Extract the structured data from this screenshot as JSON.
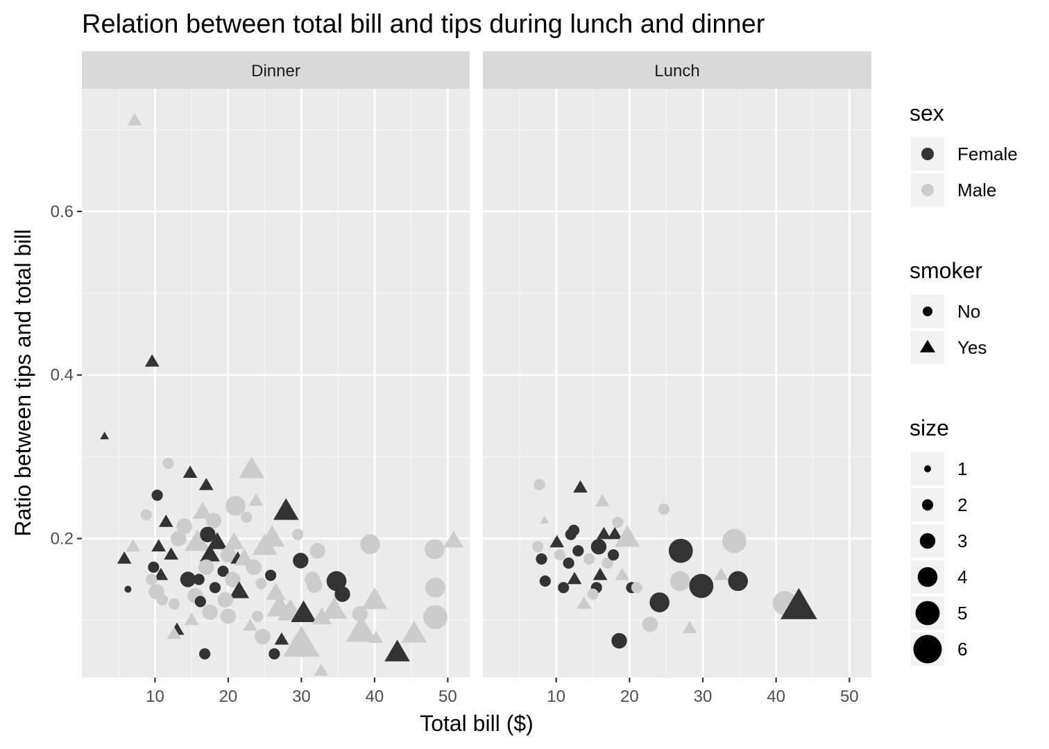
{
  "chart_data": {
    "type": "scatter",
    "title": "Relation between total bill and tips during lunch and dinner",
    "xlabel": "Total bill ($)",
    "ylabel": "Ratio between tips and total bill",
    "xlim": [
      0,
      53
    ],
    "ylim": [
      0.03,
      0.75
    ],
    "x_ticks": [
      10,
      20,
      30,
      40,
      50
    ],
    "y_ticks": [
      0.2,
      0.4,
      0.6
    ],
    "x_tick_labels": [
      "10",
      "20",
      "30",
      "40",
      "50"
    ],
    "y_tick_labels": [
      "0.2",
      "0.4",
      "0.6"
    ],
    "grid": true,
    "facets": [
      "Dinner",
      "Lunch"
    ],
    "colors": {
      "Female": "#333333",
      "Male": "#cccccc"
    },
    "legend": {
      "placement": "right",
      "sex": {
        "title": "sex",
        "entries": [
          "Female",
          "Male"
        ]
      },
      "smoker": {
        "title": "smoker",
        "entries": [
          "No",
          "Yes"
        ]
      },
      "size": {
        "title": "size",
        "entries": [
          1,
          2,
          3,
          4,
          5,
          6
        ]
      }
    },
    "points": {
      "Dinner": [
        {
          "x": 7.2,
          "y": 0.711,
          "sex": "Male",
          "smoker": "Yes",
          "size": 2
        },
        {
          "x": 9.6,
          "y": 0.416,
          "sex": "Female",
          "smoker": "Yes",
          "size": 2
        },
        {
          "x": 3.1,
          "y": 0.325,
          "sex": "Female",
          "smoker": "Yes",
          "size": 1
        },
        {
          "x": 14.8,
          "y": 0.28,
          "sex": "Female",
          "smoker": "Yes",
          "size": 2
        },
        {
          "x": 17.0,
          "y": 0.265,
          "sex": "Female",
          "smoker": "Yes",
          "size": 2
        },
        {
          "x": 23.2,
          "y": 0.284,
          "sex": "Male",
          "smoker": "Yes",
          "size": 4
        },
        {
          "x": 11.8,
          "y": 0.292,
          "sex": "Male",
          "smoker": "No",
          "size": 2
        },
        {
          "x": 10.3,
          "y": 0.253,
          "sex": "Female",
          "smoker": "No",
          "size": 2
        },
        {
          "x": 8.8,
          "y": 0.229,
          "sex": "Male",
          "smoker": "No",
          "size": 2
        },
        {
          "x": 11.5,
          "y": 0.22,
          "sex": "Female",
          "smoker": "Yes",
          "size": 2
        },
        {
          "x": 22.5,
          "y": 0.226,
          "sex": "Male",
          "smoker": "No",
          "size": 2
        },
        {
          "x": 23.8,
          "y": 0.246,
          "sex": "Male",
          "smoker": "Yes",
          "size": 2
        },
        {
          "x": 21.0,
          "y": 0.24,
          "sex": "Male",
          "smoker": "No",
          "size": 4
        },
        {
          "x": 27.9,
          "y": 0.233,
          "sex": "Female",
          "smoker": "Yes",
          "size": 4
        },
        {
          "x": 16.5,
          "y": 0.232,
          "sex": "Male",
          "smoker": "Yes",
          "size": 3
        },
        {
          "x": 18.0,
          "y": 0.222,
          "sex": "Male",
          "smoker": "No",
          "size": 3
        },
        {
          "x": 14.0,
          "y": 0.215,
          "sex": "Male",
          "smoker": "No",
          "size": 3
        },
        {
          "x": 13.2,
          "y": 0.2,
          "sex": "Male",
          "smoker": "No",
          "size": 3
        },
        {
          "x": 7.0,
          "y": 0.19,
          "sex": "Male",
          "smoker": "Yes",
          "size": 2
        },
        {
          "x": 5.8,
          "y": 0.175,
          "sex": "Female",
          "smoker": "Yes",
          "size": 2
        },
        {
          "x": 10.5,
          "y": 0.19,
          "sex": "Female",
          "smoker": "Yes",
          "size": 2
        },
        {
          "x": 12.2,
          "y": 0.18,
          "sex": "Female",
          "smoker": "Yes",
          "size": 2
        },
        {
          "x": 10.8,
          "y": 0.155,
          "sex": "Female",
          "smoker": "Yes",
          "size": 2
        },
        {
          "x": 9.8,
          "y": 0.165,
          "sex": "Female",
          "smoker": "No",
          "size": 2
        },
        {
          "x": 9.5,
          "y": 0.15,
          "sex": "Male",
          "smoker": "No",
          "size": 2
        },
        {
          "x": 6.3,
          "y": 0.138,
          "sex": "Female",
          "smoker": "No",
          "size": 1
        },
        {
          "x": 10.2,
          "y": 0.135,
          "sex": "Male",
          "smoker": "No",
          "size": 3
        },
        {
          "x": 11.0,
          "y": 0.125,
          "sex": "Male",
          "smoker": "No",
          "size": 2
        },
        {
          "x": 12.6,
          "y": 0.12,
          "sex": "Male",
          "smoker": "No",
          "size": 2
        },
        {
          "x": 13.0,
          "y": 0.088,
          "sex": "Female",
          "smoker": "Yes",
          "size": 2
        },
        {
          "x": 12.6,
          "y": 0.083,
          "sex": "Male",
          "smoker": "Yes",
          "size": 2
        },
        {
          "x": 15.0,
          "y": 0.1,
          "sex": "Male",
          "smoker": "Yes",
          "size": 2
        },
        {
          "x": 15.5,
          "y": 0.13,
          "sex": "Male",
          "smoker": "No",
          "size": 3
        },
        {
          "x": 14.5,
          "y": 0.15,
          "sex": "Female",
          "smoker": "No",
          "size": 3
        },
        {
          "x": 15.8,
          "y": 0.195,
          "sex": "Male",
          "smoker": "Yes",
          "size": 4
        },
        {
          "x": 17.2,
          "y": 0.205,
          "sex": "Female",
          "smoker": "No",
          "size": 3
        },
        {
          "x": 17.5,
          "y": 0.18,
          "sex": "Female",
          "smoker": "Yes",
          "size": 3
        },
        {
          "x": 18.5,
          "y": 0.195,
          "sex": "Female",
          "smoker": "Yes",
          "size": 3
        },
        {
          "x": 17.0,
          "y": 0.165,
          "sex": "Male",
          "smoker": "No",
          "size": 3
        },
        {
          "x": 16.0,
          "y": 0.15,
          "sex": "Female",
          "smoker": "No",
          "size": 2
        },
        {
          "x": 18.2,
          "y": 0.14,
          "sex": "Female",
          "smoker": "No",
          "size": 2
        },
        {
          "x": 19.3,
          "y": 0.16,
          "sex": "Female",
          "smoker": "No",
          "size": 2
        },
        {
          "x": 20.0,
          "y": 0.18,
          "sex": "Male",
          "smoker": "No",
          "size": 3
        },
        {
          "x": 20.8,
          "y": 0.195,
          "sex": "Male",
          "smoker": "Yes",
          "size": 3
        },
        {
          "x": 21.3,
          "y": 0.175,
          "sex": "Female",
          "smoker": "Yes",
          "size": 2
        },
        {
          "x": 20.6,
          "y": 0.15,
          "sex": "Male",
          "smoker": "No",
          "size": 3
        },
        {
          "x": 21.5,
          "y": 0.135,
          "sex": "Female",
          "smoker": "Yes",
          "size": 3
        },
        {
          "x": 19.6,
          "y": 0.125,
          "sex": "Male",
          "smoker": "No",
          "size": 3
        },
        {
          "x": 20.0,
          "y": 0.105,
          "sex": "Male",
          "smoker": "No",
          "size": 3
        },
        {
          "x": 16.2,
          "y": 0.123,
          "sex": "Female",
          "smoker": "No",
          "size": 2
        },
        {
          "x": 17.5,
          "y": 0.11,
          "sex": "Male",
          "smoker": "No",
          "size": 3
        },
        {
          "x": 16.8,
          "y": 0.059,
          "sex": "Female",
          "smoker": "No",
          "size": 2
        },
        {
          "x": 22.2,
          "y": 0.175,
          "sex": "Male",
          "smoker": "Yes",
          "size": 3
        },
        {
          "x": 23.5,
          "y": 0.165,
          "sex": "Male",
          "smoker": "No",
          "size": 3
        },
        {
          "x": 24.5,
          "y": 0.145,
          "sex": "Male",
          "smoker": "No",
          "size": 2
        },
        {
          "x": 25.0,
          "y": 0.19,
          "sex": "Male",
          "smoker": "Yes",
          "size": 4
        },
        {
          "x": 26.0,
          "y": 0.2,
          "sex": "Male",
          "smoker": "Yes",
          "size": 4
        },
        {
          "x": 25.8,
          "y": 0.155,
          "sex": "Female",
          "smoker": "No",
          "size": 2
        },
        {
          "x": 24.0,
          "y": 0.105,
          "sex": "Male",
          "smoker": "No",
          "size": 2
        },
        {
          "x": 23.0,
          "y": 0.093,
          "sex": "Male",
          "smoker": "Yes",
          "size": 2
        },
        {
          "x": 24.7,
          "y": 0.08,
          "sex": "Male",
          "smoker": "No",
          "size": 3
        },
        {
          "x": 26.3,
          "y": 0.059,
          "sex": "Female",
          "smoker": "No",
          "size": 2
        },
        {
          "x": 27.3,
          "y": 0.076,
          "sex": "Female",
          "smoker": "Yes",
          "size": 2
        },
        {
          "x": 27.0,
          "y": 0.115,
          "sex": "Male",
          "smoker": "Yes",
          "size": 4
        },
        {
          "x": 26.5,
          "y": 0.133,
          "sex": "Male",
          "smoker": "Yes",
          "size": 3
        },
        {
          "x": 28.5,
          "y": 0.11,
          "sex": "Male",
          "smoker": "Yes",
          "size": 4
        },
        {
          "x": 29.5,
          "y": 0.205,
          "sex": "Male",
          "smoker": "No",
          "size": 2
        },
        {
          "x": 29.9,
          "y": 0.173,
          "sex": "Female",
          "smoker": "No",
          "size": 3
        },
        {
          "x": 30.3,
          "y": 0.108,
          "sex": "Female",
          "smoker": "Yes",
          "size": 4
        },
        {
          "x": 30.0,
          "y": 0.07,
          "sex": "Male",
          "smoker": "Yes",
          "size": 6
        },
        {
          "x": 31.5,
          "y": 0.15,
          "sex": "Male",
          "smoker": "No",
          "size": 3
        },
        {
          "x": 32.2,
          "y": 0.185,
          "sex": "Male",
          "smoker": "No",
          "size": 3
        },
        {
          "x": 31.8,
          "y": 0.143,
          "sex": "Male",
          "smoker": "No",
          "size": 3
        },
        {
          "x": 32.8,
          "y": 0.103,
          "sex": "Male",
          "smoker": "Yes",
          "size": 3
        },
        {
          "x": 32.7,
          "y": 0.038,
          "sex": "Male",
          "smoker": "Yes",
          "size": 2
        },
        {
          "x": 34.8,
          "y": 0.148,
          "sex": "Female",
          "smoker": "No",
          "size": 4
        },
        {
          "x": 35.6,
          "y": 0.132,
          "sex": "Female",
          "smoker": "No",
          "size": 3
        },
        {
          "x": 34.5,
          "y": 0.112,
          "sex": "Male",
          "smoker": "Yes",
          "size": 4
        },
        {
          "x": 38.0,
          "y": 0.108,
          "sex": "Male",
          "smoker": "No",
          "size": 3
        },
        {
          "x": 38.2,
          "y": 0.086,
          "sex": "Male",
          "smoker": "Yes",
          "size": 5
        },
        {
          "x": 39.4,
          "y": 0.193,
          "sex": "Male",
          "smoker": "No",
          "size": 4
        },
        {
          "x": 40.0,
          "y": 0.124,
          "sex": "Male",
          "smoker": "Yes",
          "size": 4
        },
        {
          "x": 40.2,
          "y": 0.078,
          "sex": "Male",
          "smoker": "Yes",
          "size": 2
        },
        {
          "x": 43.1,
          "y": 0.06,
          "sex": "Female",
          "smoker": "Yes",
          "size": 4
        },
        {
          "x": 45.4,
          "y": 0.083,
          "sex": "Male",
          "smoker": "Yes",
          "size": 4
        },
        {
          "x": 48.2,
          "y": 0.187,
          "sex": "Male",
          "smoker": "No",
          "size": 4
        },
        {
          "x": 48.3,
          "y": 0.14,
          "sex": "Male",
          "smoker": "No",
          "size": 4
        },
        {
          "x": 48.3,
          "y": 0.104,
          "sex": "Male",
          "smoker": "No",
          "size": 5
        },
        {
          "x": 50.8,
          "y": 0.197,
          "sex": "Male",
          "smoker": "Yes",
          "size": 3
        }
      ],
      "Lunch": [
        {
          "x": 7.7,
          "y": 0.266,
          "sex": "Male",
          "smoker": "No",
          "size": 2
        },
        {
          "x": 8.4,
          "y": 0.222,
          "sex": "Male",
          "smoker": "Yes",
          "size": 1
        },
        {
          "x": 7.5,
          "y": 0.19,
          "sex": "Male",
          "smoker": "No",
          "size": 2
        },
        {
          "x": 8.0,
          "y": 0.175,
          "sex": "Female",
          "smoker": "No",
          "size": 2
        },
        {
          "x": 8.5,
          "y": 0.148,
          "sex": "Female",
          "smoker": "No",
          "size": 2
        },
        {
          "x": 10.1,
          "y": 0.195,
          "sex": "Female",
          "smoker": "Yes",
          "size": 2
        },
        {
          "x": 10.5,
          "y": 0.18,
          "sex": "Male",
          "smoker": "No",
          "size": 2
        },
        {
          "x": 11.0,
          "y": 0.14,
          "sex": "Female",
          "smoker": "No",
          "size": 2
        },
        {
          "x": 11.7,
          "y": 0.17,
          "sex": "Female",
          "smoker": "No",
          "size": 2
        },
        {
          "x": 12.0,
          "y": 0.205,
          "sex": "Female",
          "smoker": "No",
          "size": 2
        },
        {
          "x": 12.4,
          "y": 0.21,
          "sex": "Female",
          "smoker": "No",
          "size": 2
        },
        {
          "x": 12.5,
          "y": 0.15,
          "sex": "Female",
          "smoker": "Yes",
          "size": 2
        },
        {
          "x": 13.3,
          "y": 0.262,
          "sex": "Female",
          "smoker": "Yes",
          "size": 2
        },
        {
          "x": 13.0,
          "y": 0.185,
          "sex": "Female",
          "smoker": "No",
          "size": 2
        },
        {
          "x": 13.8,
          "y": 0.12,
          "sex": "Male",
          "smoker": "Yes",
          "size": 2
        },
        {
          "x": 14.5,
          "y": 0.175,
          "sex": "Male",
          "smoker": "No",
          "size": 2
        },
        {
          "x": 15.5,
          "y": 0.14,
          "sex": "Female",
          "smoker": "No",
          "size": 2
        },
        {
          "x": 15.0,
          "y": 0.132,
          "sex": "Male",
          "smoker": "No",
          "size": 2
        },
        {
          "x": 15.8,
          "y": 0.19,
          "sex": "Female",
          "smoker": "No",
          "size": 3
        },
        {
          "x": 16.0,
          "y": 0.155,
          "sex": "Female",
          "smoker": "Yes",
          "size": 2
        },
        {
          "x": 16.3,
          "y": 0.245,
          "sex": "Male",
          "smoker": "Yes",
          "size": 2
        },
        {
          "x": 16.5,
          "y": 0.205,
          "sex": "Female",
          "smoker": "Yes",
          "size": 2
        },
        {
          "x": 17.0,
          "y": 0.17,
          "sex": "Male",
          "smoker": "No",
          "size": 2
        },
        {
          "x": 17.8,
          "y": 0.18,
          "sex": "Female",
          "smoker": "No",
          "size": 2
        },
        {
          "x": 18.4,
          "y": 0.22,
          "sex": "Male",
          "smoker": "No",
          "size": 2
        },
        {
          "x": 18.0,
          "y": 0.205,
          "sex": "Female",
          "smoker": "Yes",
          "size": 2
        },
        {
          "x": 18.6,
          "y": 0.075,
          "sex": "Female",
          "smoker": "No",
          "size": 3
        },
        {
          "x": 19.0,
          "y": 0.155,
          "sex": "Male",
          "smoker": "Yes",
          "size": 2
        },
        {
          "x": 19.7,
          "y": 0.2,
          "sex": "Male",
          "smoker": "Yes",
          "size": 4
        },
        {
          "x": 20.3,
          "y": 0.14,
          "sex": "Female",
          "smoker": "No",
          "size": 2
        },
        {
          "x": 21.0,
          "y": 0.14,
          "sex": "Male",
          "smoker": "No",
          "size": 2
        },
        {
          "x": 22.8,
          "y": 0.095,
          "sex": "Male",
          "smoker": "No",
          "size": 3
        },
        {
          "x": 24.1,
          "y": 0.122,
          "sex": "Female",
          "smoker": "No",
          "size": 4
        },
        {
          "x": 24.7,
          "y": 0.236,
          "sex": "Male",
          "smoker": "No",
          "size": 2
        },
        {
          "x": 26.9,
          "y": 0.148,
          "sex": "Male",
          "smoker": "No",
          "size": 4
        },
        {
          "x": 27.0,
          "y": 0.185,
          "sex": "Female",
          "smoker": "No",
          "size": 5
        },
        {
          "x": 28.2,
          "y": 0.09,
          "sex": "Male",
          "smoker": "Yes",
          "size": 2
        },
        {
          "x": 29.8,
          "y": 0.142,
          "sex": "Female",
          "smoker": "No",
          "size": 5
        },
        {
          "x": 32.5,
          "y": 0.155,
          "sex": "Male",
          "smoker": "Yes",
          "size": 2
        },
        {
          "x": 34.3,
          "y": 0.197,
          "sex": "Male",
          "smoker": "No",
          "size": 5
        },
        {
          "x": 34.8,
          "y": 0.148,
          "sex": "Female",
          "smoker": "No",
          "size": 4
        },
        {
          "x": 41.2,
          "y": 0.121,
          "sex": "Male",
          "smoker": "No",
          "size": 5
        },
        {
          "x": 43.1,
          "y": 0.116,
          "sex": "Female",
          "smoker": "Yes",
          "size": 6
        }
      ]
    }
  }
}
